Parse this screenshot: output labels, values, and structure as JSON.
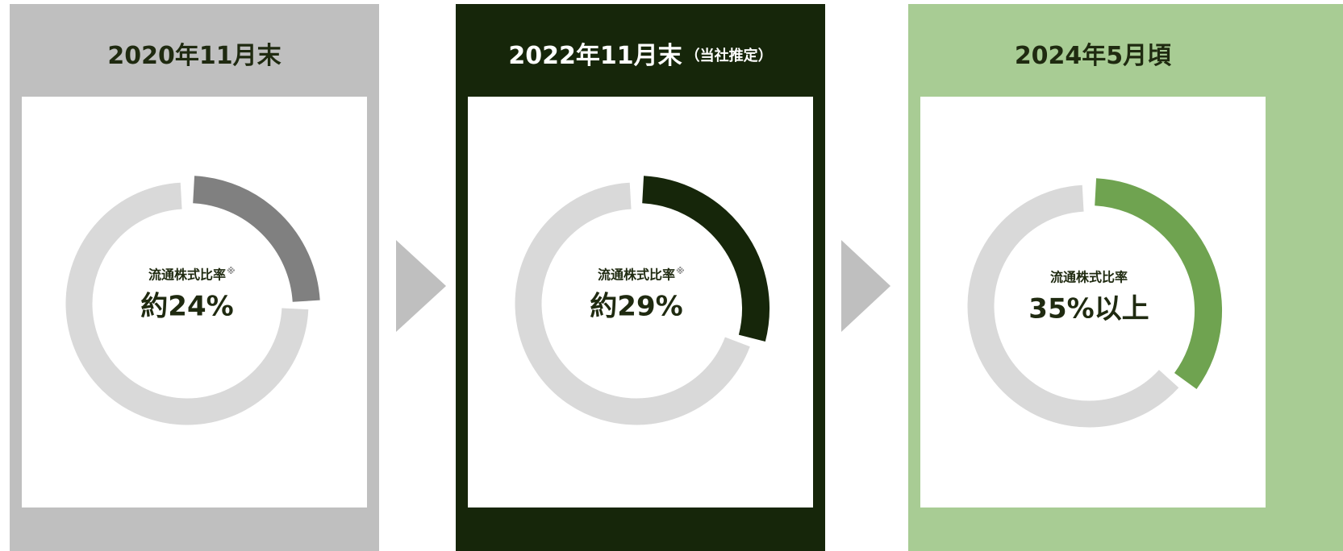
{
  "chart_data": [
    {
      "type": "donut",
      "title": "2020年11月末",
      "label": "流通株式比率",
      "note": "※",
      "values": [
        24
      ],
      "value_labels": [
        "約24%"
      ],
      "color": "#808080"
    },
    {
      "type": "donut",
      "title": "2022年11月末",
      "subtitle": "（当社推定）",
      "label": "流通株式比率",
      "note": "※",
      "values": [
        29
      ],
      "value_labels": [
        "約29%"
      ],
      "color": "#16260a"
    },
    {
      "type": "donut",
      "title": "2024年5月頃",
      "label": "流通株式比率",
      "values": [
        35
      ],
      "value_labels": [
        "35%以上"
      ],
      "color": "#6fa350"
    }
  ]
}
